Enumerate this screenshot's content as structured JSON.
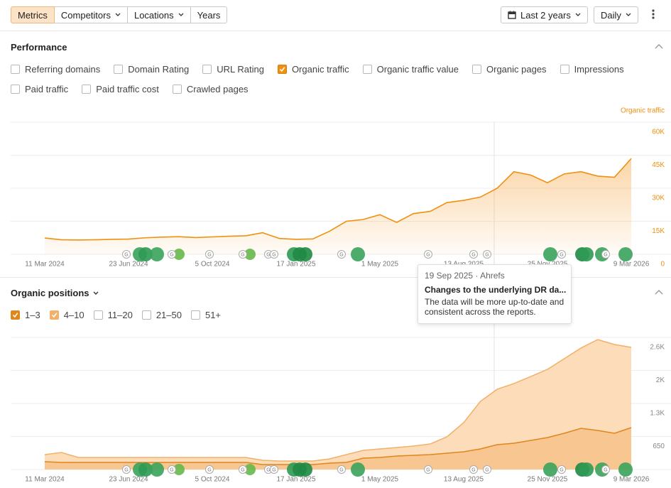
{
  "toolbar": {
    "tabs": [
      {
        "label": "Metrics",
        "active": true,
        "dropdown": false
      },
      {
        "label": "Competitors",
        "active": false,
        "dropdown": true
      },
      {
        "label": "Locations",
        "active": false,
        "dropdown": true
      },
      {
        "label": "Years",
        "active": false,
        "dropdown": false
      }
    ],
    "date_range": "Last 2 years",
    "interval": "Daily"
  },
  "performance": {
    "title": "Performance",
    "metrics": [
      {
        "label": "Referring domains",
        "checked": false
      },
      {
        "label": "Domain Rating",
        "checked": false
      },
      {
        "label": "URL Rating",
        "checked": false
      },
      {
        "label": "Organic traffic",
        "checked": true
      },
      {
        "label": "Organic traffic value",
        "checked": false
      },
      {
        "label": "Organic pages",
        "checked": false
      },
      {
        "label": "Impressions",
        "checked": false
      },
      {
        "label": "Paid traffic",
        "checked": false
      },
      {
        "label": "Paid traffic cost",
        "checked": false
      },
      {
        "label": "Crawled pages",
        "checked": false
      }
    ],
    "chart_data": {
      "type": "area",
      "axis_label": "Organic traffic",
      "color": "#f0900f",
      "x_labels": [
        "11 Mar 2024",
        "23 Jun 2024",
        "5 Oct 2024",
        "17 Jan 2025",
        "1 May 2025",
        "13 Aug 2025",
        "25 Nov 2025",
        "9 Mar 2026"
      ],
      "values": [
        7400,
        6600,
        6500,
        6600,
        6800,
        6900,
        7500,
        7800,
        8000,
        7600,
        7900,
        8200,
        8400,
        9800,
        7200,
        6800,
        7000,
        10500,
        15000,
        15800,
        18000,
        14500,
        18500,
        19500,
        23500,
        24500,
        26000,
        30000,
        37500,
        36000,
        32500,
        36500,
        37500,
        35500,
        35000,
        43500
      ],
      "ylim": [
        0,
        60000
      ],
      "yticks": [
        0,
        {
          "value": 15000,
          "label": "15K"
        },
        {
          "value": 30000,
          "label": "30K"
        },
        {
          "value": 45000,
          "label": "45K"
        },
        {
          "value": 60000,
          "label": "60K"
        }
      ],
      "grid": true
    }
  },
  "tooltip": {
    "meta": "19 Sep 2025 · Ahrefs",
    "title": "Changes to the underlying DR da...",
    "body": "The data will be more up-to-date and consistent across the reports."
  },
  "organic_positions": {
    "title": "Organic positions",
    "other_filters": [
      "11–20",
      "21–50",
      "51+"
    ],
    "chart_data": {
      "type": "stacked-area",
      "x_labels": [
        "11 Mar 2024",
        "23 Jun 2024",
        "5 Oct 2024",
        "17 Jan 2025",
        "1 May 2025",
        "13 Aug 2025",
        "25 Nov 2025",
        "9 Mar 2026"
      ],
      "series": [
        {
          "name": "1–3",
          "color": "#e0861c",
          "fill": "#f8c690",
          "values": [
            154,
            140,
            140,
            140,
            140,
            140,
            140,
            140,
            140,
            140,
            140,
            140,
            140,
            98,
            98,
            98,
            98,
            126,
            140,
            224,
            238,
            266,
            280,
            294,
            322,
            350,
            405,
            489,
            517,
            573,
            629,
            713,
            811,
            769,
            713,
            825
          ]
        },
        {
          "name": "4–10",
          "color": "#f2b068",
          "fill": "#fcdcb9",
          "values": [
            140,
            195,
            98,
            98,
            98,
            98,
            98,
            98,
            98,
            98,
            98,
            98,
            98,
            84,
            70,
            70,
            70,
            84,
            154,
            153,
            167,
            167,
            181,
            209,
            321,
            573,
            937,
            1091,
            1175,
            1258,
            1342,
            1468,
            1580,
            1789,
            1747,
            1579
          ]
        }
      ],
      "ylim": [
        0,
        2600
      ],
      "yticks": [
        650,
        {
          "value": 1300,
          "label": "1.3K"
        },
        {
          "value": 1950,
          "label": "2K"
        },
        {
          "value": 2600,
          "label": "2.6K"
        }
      ],
      "grid": true
    }
  },
  "marker_label": "G"
}
